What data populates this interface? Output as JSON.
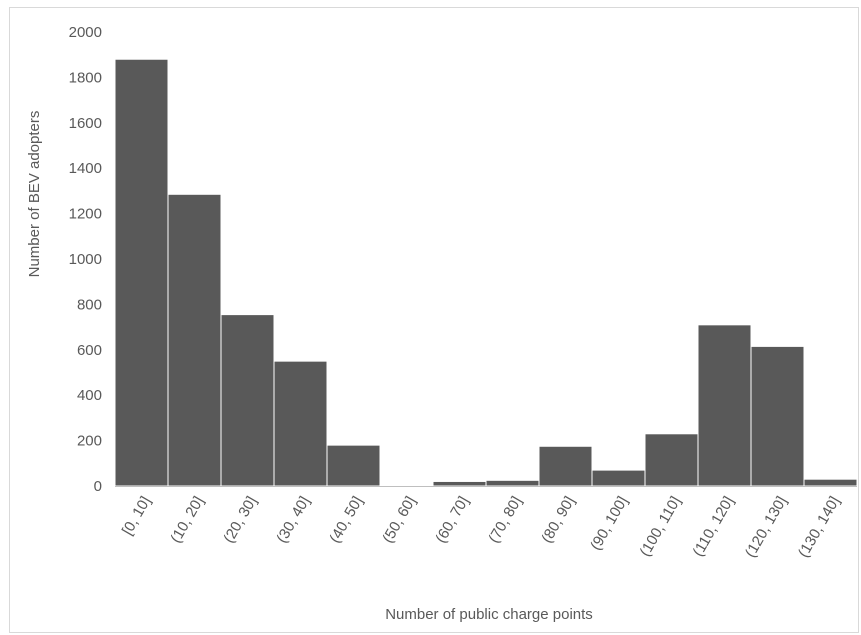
{
  "chart_data": {
    "type": "bar",
    "xlabel": "Number of public charge points",
    "ylabel": "Number of BEV adopters",
    "ylim": [
      0,
      2000
    ],
    "yticks": [
      0,
      200,
      400,
      600,
      800,
      1000,
      1200,
      1400,
      1600,
      1800,
      2000
    ],
    "grid": false,
    "categories": [
      "[0, 10]",
      "(10, 20]",
      "(20, 30]",
      "(30, 40]",
      "(40, 50]",
      "(50, 60]",
      "(60, 70]",
      "(70, 80]",
      "(80, 90]",
      "(90, 100]",
      "(100, 110]",
      "(110, 120]",
      "(120, 130]",
      "(130, 140]"
    ],
    "values": [
      1880,
      1285,
      755,
      550,
      180,
      0,
      20,
      25,
      175,
      70,
      230,
      710,
      615,
      30
    ],
    "colors": {
      "bar": "#595959",
      "bar_edge": "#ffffff",
      "axis": "#bfbfbf",
      "text": "#595959"
    }
  }
}
